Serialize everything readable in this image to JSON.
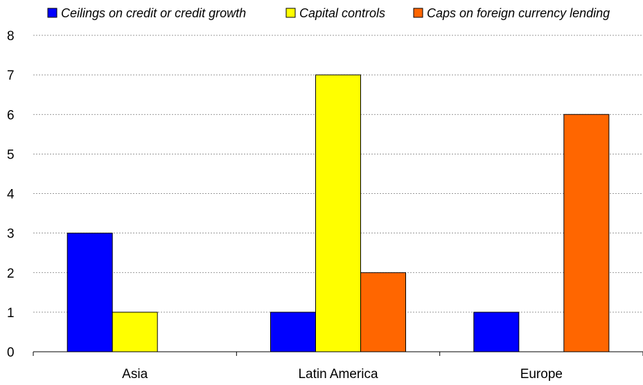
{
  "chart_data": {
    "type": "bar",
    "categories": [
      "Asia",
      "Latin America",
      "Europe"
    ],
    "series": [
      {
        "name": "Ceilings on credit or credit growth",
        "values": [
          3,
          1,
          1
        ],
        "color": "#0000ff"
      },
      {
        "name": "Capital controls",
        "values": [
          1,
          7,
          0
        ],
        "color": "#ffff00"
      },
      {
        "name": "Caps on foreign currency lending",
        "values": [
          0,
          2,
          6
        ],
        "color": "#ff6600"
      }
    ],
    "ylim": [
      0,
      8
    ],
    "yticks": [
      0,
      1,
      2,
      3,
      4,
      5,
      6,
      7,
      8
    ],
    "grid": true,
    "legend": "top"
  }
}
